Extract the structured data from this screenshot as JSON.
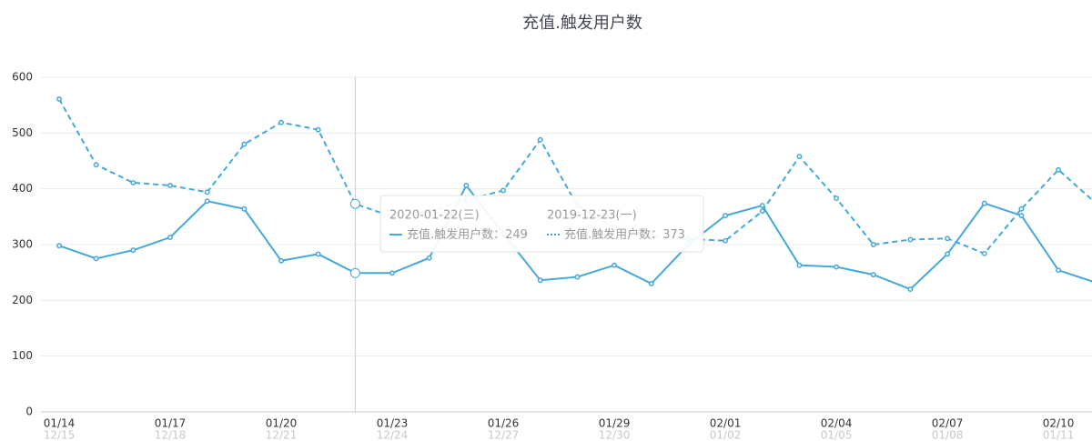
{
  "chart_data": {
    "type": "line",
    "title": "充值.触发用户数",
    "categories": [
      "01/14",
      null,
      null,
      "01/17",
      null,
      null,
      "01/20",
      null,
      null,
      "01/23",
      null,
      null,
      "01/26",
      null,
      null,
      "01/29",
      null,
      null,
      "02/01",
      null,
      null,
      "02/04",
      null,
      null,
      "02/07",
      null,
      null,
      "02/10",
      null
    ],
    "categories2": [
      "12/15",
      null,
      null,
      "12/18",
      null,
      null,
      "12/21",
      null,
      null,
      "12/24",
      null,
      null,
      "12/27",
      null,
      null,
      "12/30",
      null,
      null,
      "01/02",
      null,
      null,
      "01/05",
      null,
      null,
      "01/08",
      null,
      null,
      "01/11",
      null
    ],
    "series": [
      {
        "color": "#45a8da",
        "dashed": false,
        "values": [
          298,
          275,
          290,
          313,
          378,
          364,
          271,
          283,
          249,
          249,
          276,
          406,
          320,
          236,
          242,
          263,
          230,
          300,
          352,
          370,
          263,
          260,
          246,
          220,
          283,
          374,
          352,
          254,
          232
        ]
      },
      {
        "color": "#45a8da",
        "dashed": true,
        "values": [
          561,
          443,
          411,
          406,
          394,
          480,
          519,
          506,
          373,
          350,
          360,
          380,
          397,
          488,
          370,
          330,
          315,
          310,
          307,
          360,
          458,
          383,
          300,
          309,
          311,
          284,
          364,
          434,
          375
        ]
      }
    ],
    "ylim": [
      0,
      600
    ],
    "yticks": [
      0,
      100,
      200,
      300,
      400,
      500,
      600
    ],
    "grid": true,
    "tooltip": {
      "index": 8,
      "entries": [
        {
          "date": "2020-01-22(三)",
          "label": "充值.触发用户数："
        },
        {
          "date": "2019-12-23(一)",
          "label": "充值.触发用户数："
        }
      ]
    }
  }
}
